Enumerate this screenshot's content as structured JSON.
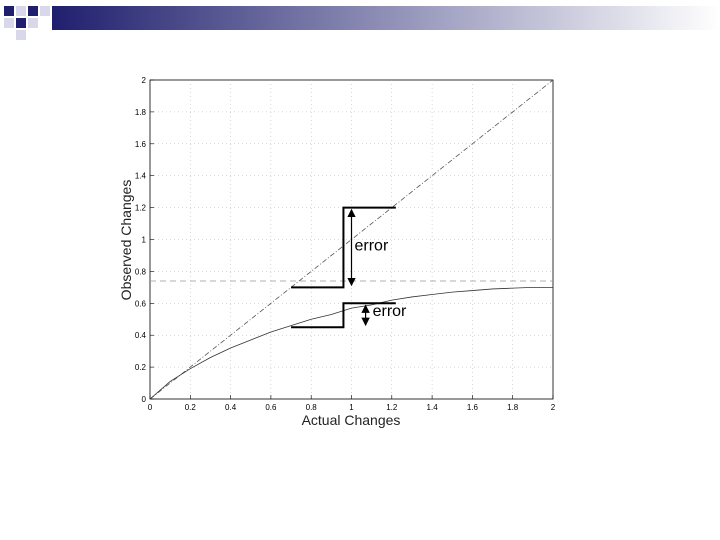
{
  "slide": {
    "decoration_colors": {
      "navy": "#1f1f6e",
      "light": "#d8d8ea",
      "bar_gradient_start": "#1f1f6e",
      "bar_gradient_end": "#ffffff"
    }
  },
  "chart_data": {
    "type": "line",
    "xlabel": "Actual Changes",
    "ylabel": "Observed Changes",
    "xlim": [
      0,
      2
    ],
    "ylim": [
      0,
      2
    ],
    "x_ticks": [
      "0",
      "0.2",
      "0.4",
      "0.6",
      "0.8",
      "1",
      "1.2",
      "1.4",
      "1.6",
      "1.8",
      "2"
    ],
    "y_ticks": [
      "0",
      "0.2",
      "0.4",
      "0.6",
      "0.8",
      "1",
      "1.2",
      "1.4",
      "1.6",
      "1.8",
      "2"
    ],
    "grid": true,
    "series": [
      {
        "style": "dash-dot",
        "x": [
          0,
          2
        ],
        "y": [
          0,
          2
        ]
      },
      {
        "style": "solid-thin",
        "x": [
          0,
          0.1,
          0.2,
          0.3,
          0.4,
          0.5,
          0.6,
          0.7,
          0.8,
          0.9,
          1.0,
          1.1,
          1.2,
          1.3,
          1.4,
          1.5,
          1.6,
          1.7,
          1.8,
          1.9,
          2.0
        ],
        "y": [
          0,
          0.11,
          0.19,
          0.26,
          0.32,
          0.37,
          0.42,
          0.46,
          0.5,
          0.53,
          0.57,
          0.59,
          0.62,
          0.64,
          0.655,
          0.67,
          0.68,
          0.69,
          0.695,
          0.7,
          0.7
        ]
      }
    ],
    "reference_line": {
      "y": 0.74,
      "style": "dashed"
    },
    "annotations": [
      {
        "text": "error",
        "x": 1.0,
        "y_from": 0.7,
        "y_to": 1.2
      },
      {
        "text": "error",
        "x": 1.07,
        "y_from": 0.45,
        "y_to": 0.6
      }
    ]
  }
}
